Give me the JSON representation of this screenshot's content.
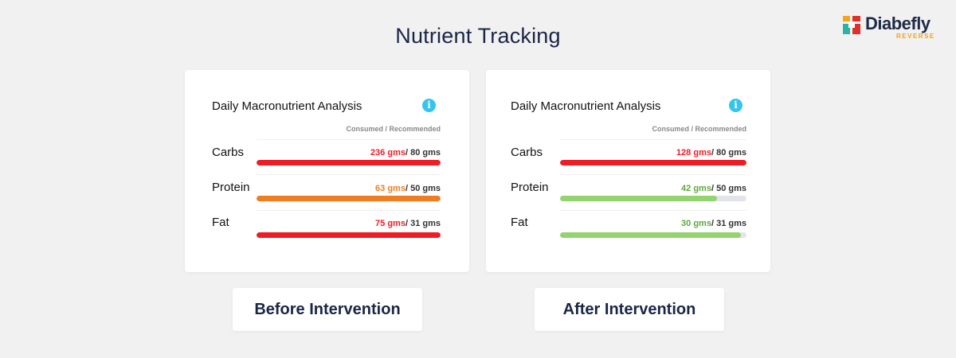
{
  "title": "Nutrient Tracking",
  "brand": {
    "name": "Diabefly",
    "sub": "REVERSE"
  },
  "colors": {
    "over": "#ee1c25",
    "warn": "#f07d1f",
    "good": "#93d46f",
    "track": "#e3e3ea",
    "info": "#35c5ec"
  },
  "cards": [
    {
      "title": "Daily Macronutrient Analysis",
      "col_header": "Consumed / Recommended",
      "info_icon": "info-icon",
      "caption": "Before Intervention",
      "rows": [
        {
          "label": "Carbs",
          "consumed": "236 gms",
          "recommended": "/ 80 gms",
          "fill_fraction": 1.0,
          "status": "over"
        },
        {
          "label": "Protein",
          "consumed": "63 gms",
          "recommended": "/ 50 gms",
          "fill_fraction": 1.0,
          "status": "warn"
        },
        {
          "label": "Fat",
          "consumed": "75 gms",
          "recommended": "/ 31 gms",
          "fill_fraction": 1.0,
          "status": "over"
        }
      ]
    },
    {
      "title": "Daily Macronutrient Analysis",
      "col_header": "Consumed / Recommended",
      "info_icon": "info-icon",
      "caption": "After Intervention",
      "rows": [
        {
          "label": "Carbs",
          "consumed": "128 gms",
          "recommended": "/ 80 gms",
          "fill_fraction": 1.0,
          "status": "over"
        },
        {
          "label": "Protein",
          "consumed": "42 gms",
          "recommended": "/ 50 gms",
          "fill_fraction": 0.84,
          "status": "good"
        },
        {
          "label": "Fat",
          "consumed": "30 gms",
          "recommended": "/ 31 gms",
          "fill_fraction": 0.97,
          "status": "good"
        }
      ]
    }
  ]
}
